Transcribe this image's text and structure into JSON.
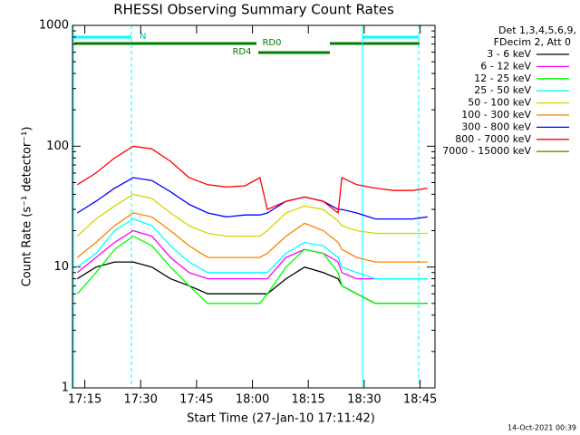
{
  "chart_data": {
    "type": "line",
    "title": "RHESSI Observing Summary Count Rates",
    "x_label": "Start Time (27-Jan-10 17:11:42)",
    "y_label": "Count Rate (s⁻¹ detector⁻¹)",
    "log_y": true,
    "xlim": [
      "17:11:42",
      "18:49:00"
    ],
    "xticks": [
      "17:15",
      "17:30",
      "17:45",
      "18:00",
      "18:15",
      "18:30",
      "18:45"
    ],
    "ylim": [
      1,
      1000
    ],
    "yticks": [
      1,
      10,
      100,
      1000
    ],
    "legend_header": [
      "Det 1,3,4,5,6,9,",
      "FDecim 2, Att 0"
    ],
    "legend_position": "right",
    "annotations": [
      "N",
      "RD0",
      "RD4"
    ],
    "footer": "14-Oct-2021 00:39",
    "x": [
      "17:13",
      "17:18",
      "17:23",
      "17:28",
      "17:33",
      "17:38",
      "17:43",
      "17:48",
      "17:53",
      "17:58",
      "18:02",
      "18:04",
      "18:09",
      "18:14",
      "18:19",
      "18:23",
      "18:24",
      "18:28",
      "18:33",
      "18:38",
      "18:43",
      "18:47"
    ],
    "series": [
      {
        "name": "3 - 6 keV",
        "color": "#000000",
        "values": [
          8,
          10,
          11,
          11,
          10,
          8,
          7,
          6,
          6,
          6,
          6,
          6,
          8,
          10,
          9,
          8,
          7,
          6,
          5,
          5,
          5,
          5
        ]
      },
      {
        "name": "6 - 12 keV",
        "color": "#ff00ff",
        "values": [
          9,
          12,
          16,
          20,
          18,
          12,
          9,
          8,
          8,
          8,
          8,
          8,
          12,
          14,
          13,
          11,
          9,
          8,
          8,
          8,
          8,
          8
        ]
      },
      {
        "name": "12 - 25 keV",
        "color": "#00ff00",
        "values": [
          6,
          9,
          14,
          18,
          15,
          10,
          7,
          5,
          5,
          5,
          5,
          6,
          10,
          14,
          13,
          9,
          7,
          6,
          5,
          5,
          5,
          5
        ]
      },
      {
        "name": "25 - 50 keV",
        "color": "#00ffff",
        "values": [
          10,
          13,
          20,
          25,
          22,
          15,
          11,
          9,
          9,
          9,
          9,
          9,
          13,
          16,
          15,
          12,
          10,
          9,
          8,
          8,
          8,
          8
        ]
      },
      {
        "name": "50 - 100 keV",
        "color": "#d4d400",
        "values": [
          18,
          25,
          32,
          40,
          37,
          28,
          22,
          19,
          18,
          18,
          18,
          20,
          28,
          32,
          30,
          24,
          22,
          20,
          19,
          19,
          19,
          19
        ]
      },
      {
        "name": "100 - 300 keV",
        "color": "#ff8000",
        "values": [
          12,
          16,
          22,
          28,
          26,
          20,
          15,
          12,
          12,
          12,
          12,
          13,
          18,
          23,
          20,
          16,
          14,
          12,
          11,
          11,
          11,
          11
        ]
      },
      {
        "name": "300 - 800 keV",
        "color": "#0000ff",
        "values": [
          28,
          35,
          45,
          55,
          52,
          42,
          33,
          28,
          26,
          27,
          27,
          28,
          35,
          38,
          35,
          30,
          30,
          28,
          25,
          25,
          25,
          26
        ]
      },
      {
        "name": "800 - 7000 keV",
        "color": "#ff0000",
        "values": [
          48,
          60,
          80,
          100,
          95,
          75,
          55,
          48,
          46,
          47,
          55,
          30,
          35,
          38,
          35,
          28,
          55,
          48,
          45,
          43,
          43,
          45
        ]
      },
      {
        "name": "7000 - 15000 keV",
        "color": "#808000",
        "values": [
          null,
          null,
          null,
          null,
          null,
          null,
          null,
          null,
          null,
          null,
          null,
          null,
          null,
          null,
          null,
          null,
          null,
          null,
          null,
          null,
          null,
          null
        ]
      }
    ]
  }
}
